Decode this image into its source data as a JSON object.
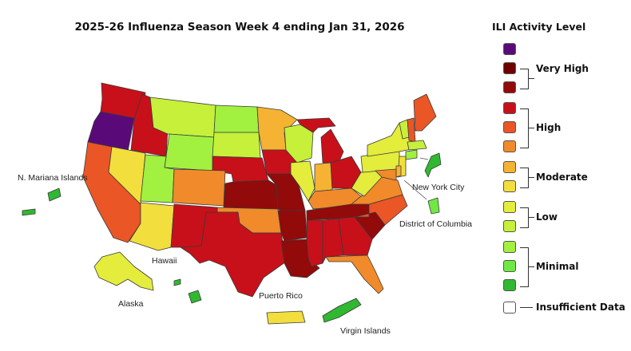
{
  "title": "2025-26 Influenza Season Week 4 ending Jan 31, 2026",
  "legend": {
    "title": "ILI Activity Level",
    "levels": [
      {
        "color": "#5a0a78"
      },
      {
        "color": "#6e0000"
      },
      {
        "color": "#920a0a"
      },
      {
        "color": "#c8101a"
      },
      {
        "color": "#ea5625"
      },
      {
        "color": "#f08a2a"
      },
      {
        "color": "#f5b233"
      },
      {
        "color": "#f2de3c"
      },
      {
        "color": "#e4ec3c"
      },
      {
        "color": "#c6f03a"
      },
      {
        "color": "#a2f040"
      },
      {
        "color": "#70e844"
      },
      {
        "color": "#30b830"
      },
      {
        "color": "#ffffff"
      }
    ],
    "groups": {
      "very_high": "Very High",
      "high": "High",
      "moderate": "Moderate",
      "low": "Low",
      "minimal": "Minimal",
      "insufficient": "Insufficient Data"
    }
  },
  "territory_labels": {
    "mariana": "N. Mariana Islands",
    "nyc": "New York City",
    "dc": "District of Columbia",
    "hawaii": "Hawaii",
    "alaska": "Alaska",
    "puerto_rico": "Puerto Rico",
    "virgin_islands": "Virgin Islands"
  },
  "states": {
    "WA": "#c8101a",
    "OR": "#5a0a78",
    "ID": "#c8101a",
    "MT": "#c6f03a",
    "WY": "#a2f040",
    "ND": "#a2f040",
    "SD": "#c6f03a",
    "NE": "#c8101a",
    "KS": "#920a0a",
    "OK": "#f08a2a",
    "TX": "#c8101a",
    "CA": "#ea5625",
    "NV": "#f2de3c",
    "UT": "#a2f040",
    "AZ": "#f2de3c",
    "CO": "#f08a2a",
    "NM": "#c8101a",
    "MN": "#f5b233",
    "IA": "#c8101a",
    "MO": "#920a0a",
    "AR": "#920a0a",
    "LA": "#920a0a",
    "WI": "#c6f03a",
    "IL": "#e4ec3c",
    "MI": "#c8101a",
    "IN": "#f5b233",
    "OH": "#c8101a",
    "KY": "#f08a2a",
    "TN": "#920a0a",
    "MS": "#c8101a",
    "AL": "#c8101a",
    "GA": "#c8101a",
    "FL": "#f08a2a",
    "SC": "#920a0a",
    "NC": "#ea5625",
    "VA": "#f08a2a",
    "WV": "#e4ec3c",
    "PA": "#e4ec3c",
    "NY": "#e4ec3c",
    "VT": "#c6f03a",
    "NH": "#ea5625",
    "ME": "#ea5625",
    "MA": "#c6f03a",
    "CT": "#a2f040",
    "NJ": "#f2de3c",
    "MD": "#f08a2a",
    "DE": "#f5b233",
    "AK": "#e4ec3c",
    "HI": "#30b830",
    "PR": "#f2de3c",
    "VI": "#30b830",
    "MP": "#30b830",
    "NYC": "#30b830",
    "DC": "#70e844"
  }
}
